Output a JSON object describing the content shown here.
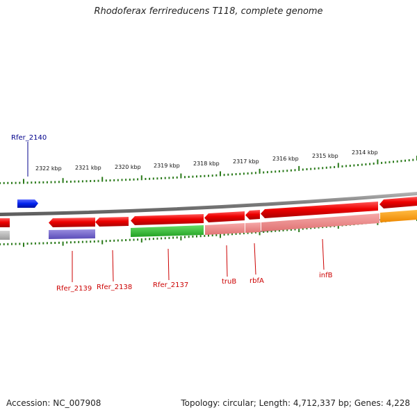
{
  "title": "Rhodoferax ferrireducens T118, complete genome",
  "footer": {
    "accession": "Accession: NC_007908",
    "topology": "Topology: circular; Length: 4,712,337 bp; Genes: 4,228"
  },
  "scale_labels": [
    "2322 kbp",
    "2321 kbp",
    "2320 kbp",
    "2319 kbp",
    "2318 kbp",
    "2317 kbp",
    "2316 kbp",
    "2315 kbp",
    "2314 kbp"
  ],
  "gene_labels": {
    "rfer_2140": "Rfer_2140",
    "rfer_2139": "Rfer_2139",
    "rfer_2138": "Rfer_2138",
    "rfer_2137": "Rfer_2137",
    "trub": "truB",
    "rbfa": "rbfA",
    "infb": "infB"
  },
  "colors": {
    "backbone": "#7a7a7a",
    "gene_red": "#ee0000",
    "gene_blue": "#0022ee",
    "cog_pink": "#f08a8a",
    "cog_green": "#33bb33",
    "cog_purple": "#7060c8",
    "cog_orange": "#ff9900",
    "cog_gray": "#b0b0b0",
    "tick_green": "#2a7a1a",
    "label_red": "#cc0000",
    "label_blue": "#00008b"
  }
}
